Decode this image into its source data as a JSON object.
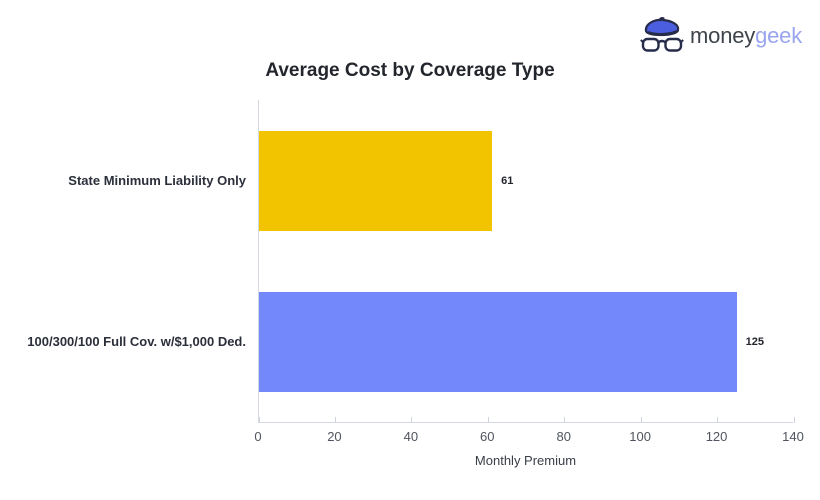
{
  "logo": {
    "brand_part1": "money",
    "brand_part2": "geek",
    "colors": {
      "part1_text": "#3f444c",
      "part2_text": "#9aa5f0",
      "beret_fill": "#4c5ee0",
      "outline": "#262c49"
    }
  },
  "chart_data": {
    "type": "bar",
    "orientation": "horizontal",
    "title": "Average Cost by Coverage Type",
    "categories": [
      "State Minimum Liability Only",
      "100/300/100 Full Cov. w/$1,000 Ded."
    ],
    "values": [
      61,
      125
    ],
    "value_labels": [
      "61",
      "125"
    ],
    "bar_colors": [
      "#f2c400",
      "#7389fb"
    ],
    "xlabel": "Monthly Premium",
    "xlim": [
      0,
      140
    ],
    "xticks": [
      0,
      20,
      40,
      60,
      80,
      100,
      120,
      140
    ],
    "grid": false,
    "legend": "none",
    "axis_color": "#d3d8e2"
  }
}
